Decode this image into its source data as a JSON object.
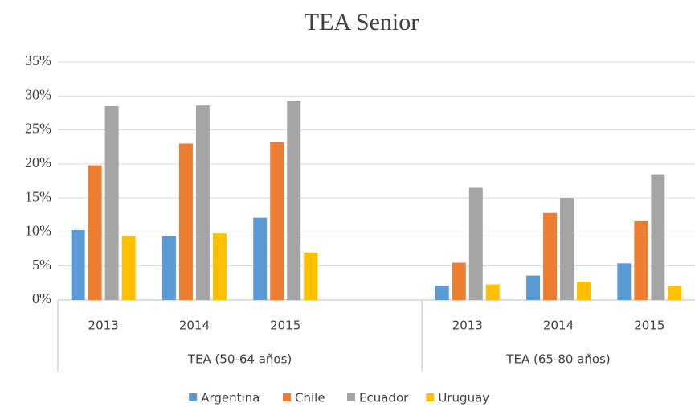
{
  "chart_data": {
    "type": "bar",
    "title": "TEA Senior",
    "groups": [
      "TEA (50-64 años)",
      "TEA (65-80 años)"
    ],
    "categories": [
      "2013",
      "2014",
      "2015",
      null,
      "2013",
      "2014",
      "2015"
    ],
    "series": [
      {
        "name": "Argentina",
        "color": "#5b9bd5",
        "values": [
          10.3,
          9.4,
          12.1,
          null,
          2.1,
          3.6,
          5.4
        ]
      },
      {
        "name": "Chile",
        "color": "#ed7d31",
        "values": [
          19.8,
          23.0,
          23.2,
          null,
          5.5,
          12.8,
          11.6
        ]
      },
      {
        "name": "Ecuador",
        "color": "#a5a5a5",
        "values": [
          28.5,
          28.6,
          29.3,
          null,
          16.5,
          15.0,
          18.5
        ]
      },
      {
        "name": "Uruguay",
        "color": "#ffc000",
        "values": [
          9.4,
          9.8,
          7.0,
          null,
          2.3,
          2.7,
          2.1
        ]
      }
    ],
    "ylim": [
      0,
      35
    ],
    "yticks": [
      {
        "value": 0,
        "label": "0%"
      },
      {
        "value": 5,
        "label": "5%"
      },
      {
        "value": 10,
        "label": "10%"
      },
      {
        "value": 15,
        "label": "15%"
      },
      {
        "value": 20,
        "label": "20%"
      },
      {
        "value": 25,
        "label": "25%"
      },
      {
        "value": 30,
        "label": "30%"
      },
      {
        "value": 35,
        "label": "35%"
      }
    ],
    "grid": true,
    "legend": "bottom"
  }
}
